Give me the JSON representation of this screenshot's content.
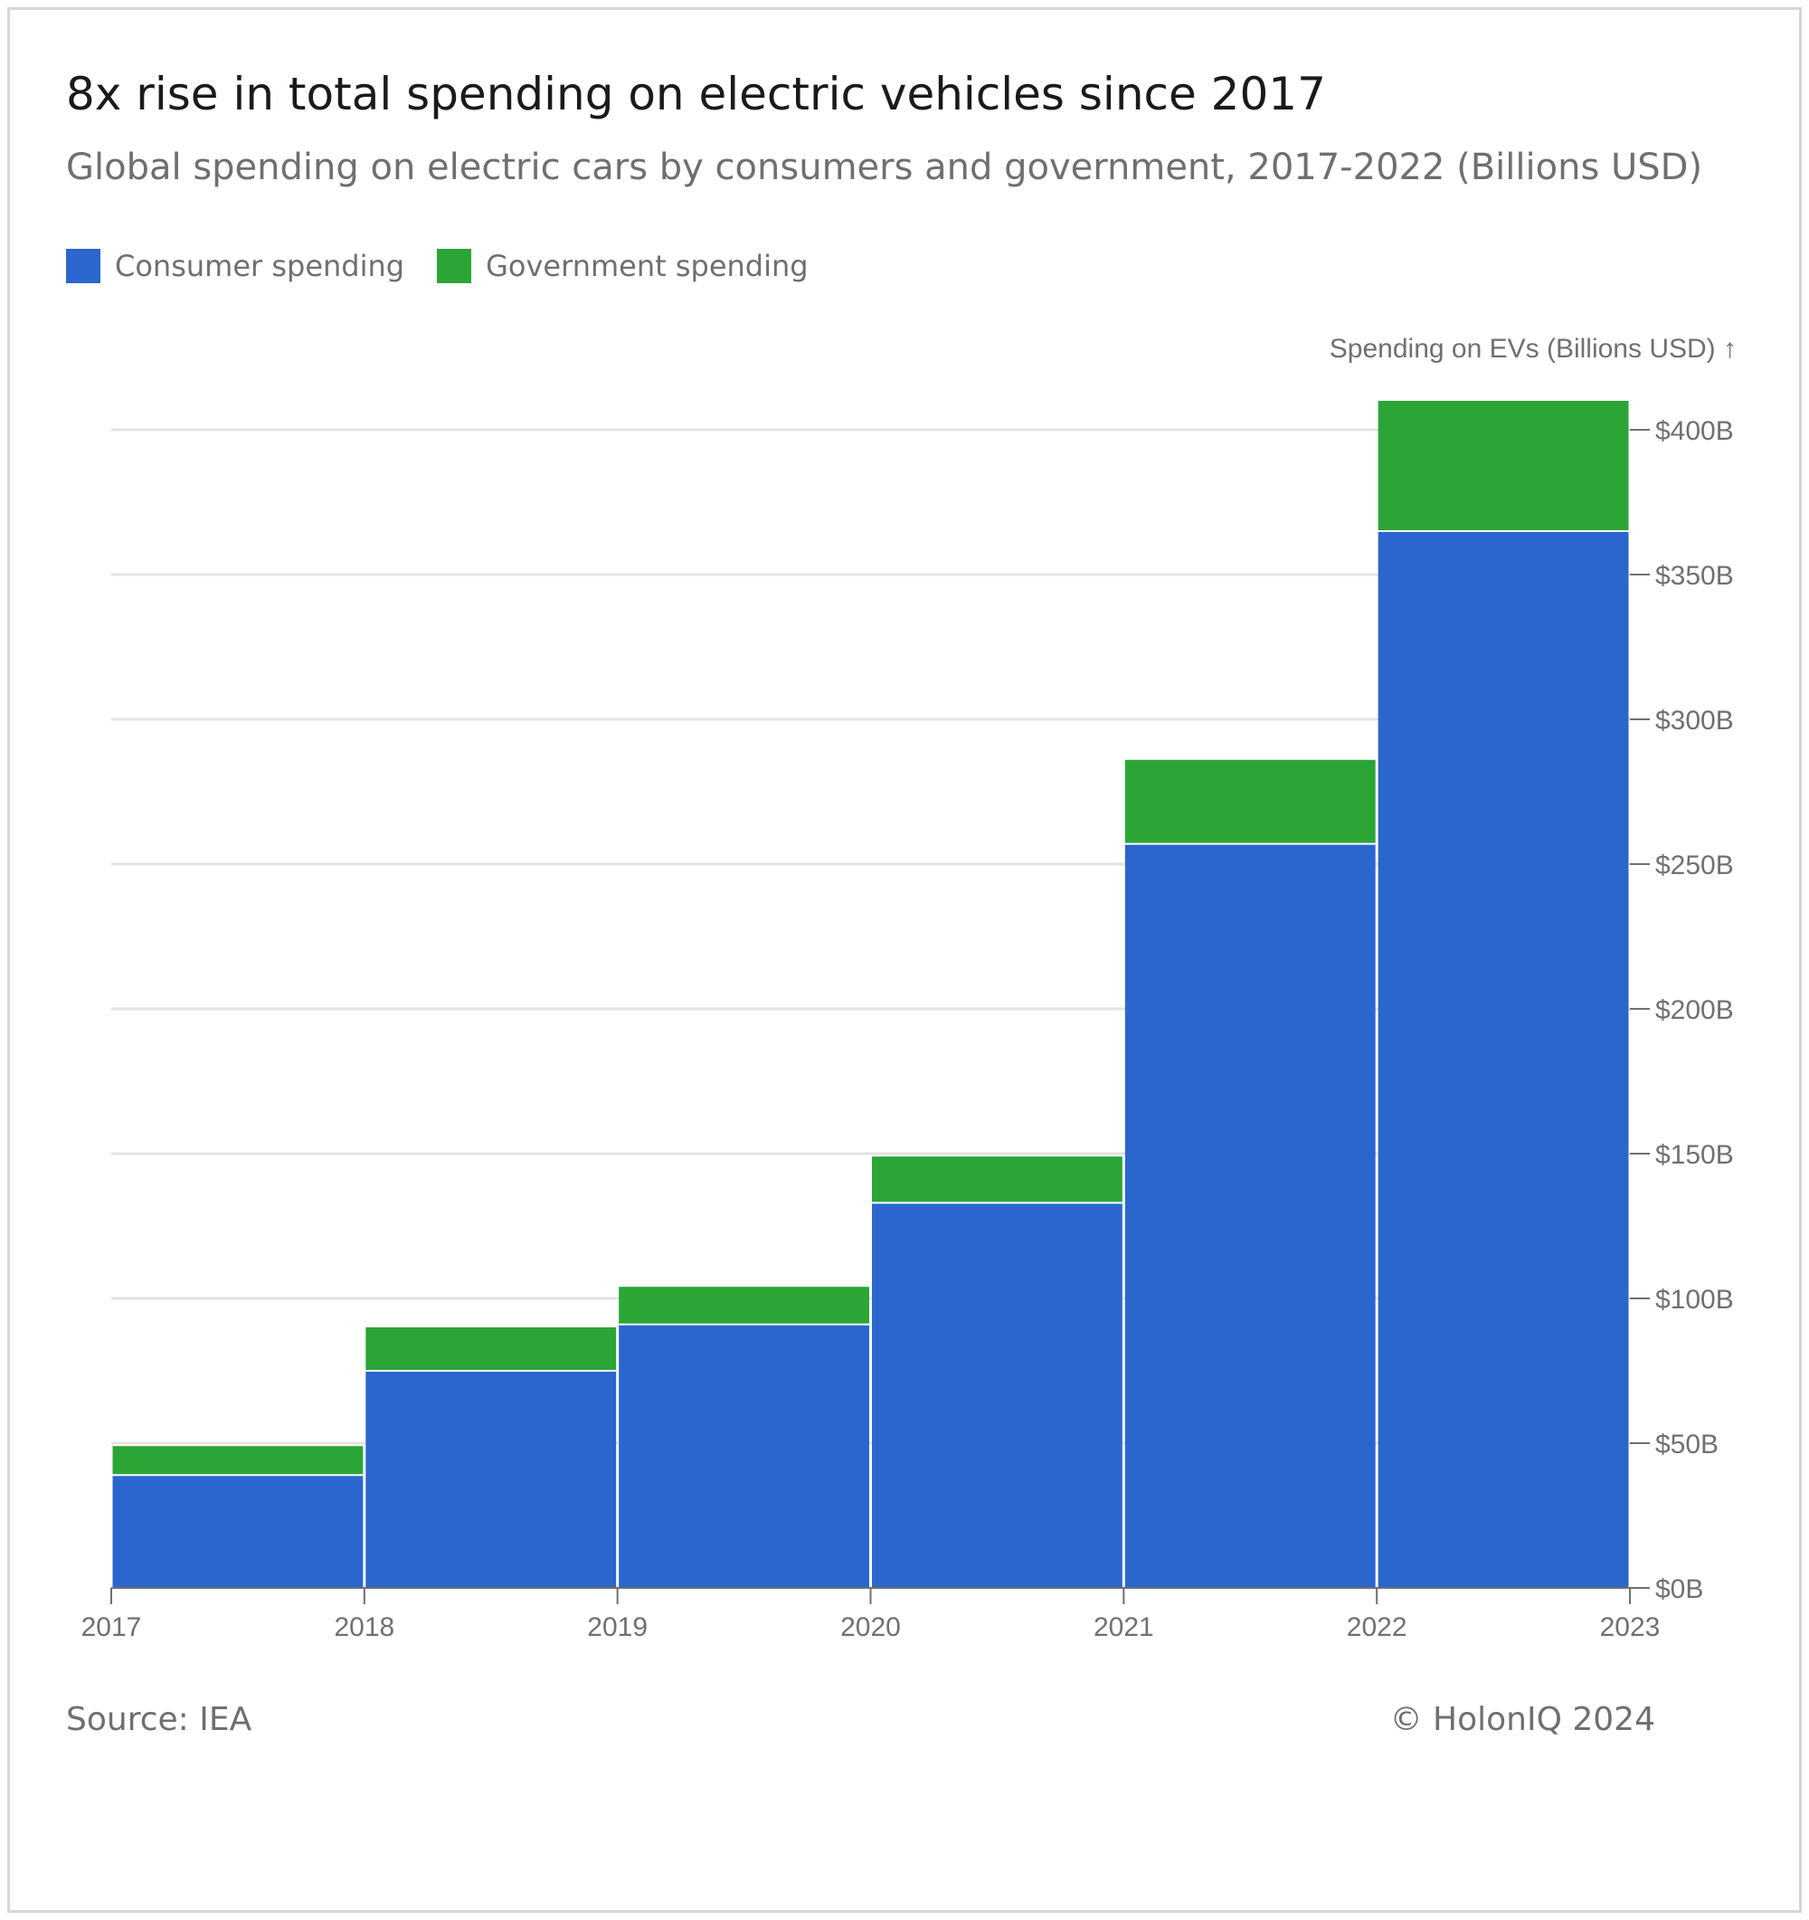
{
  "header": {
    "title": "8x rise in total spending on electric vehicles since 2017",
    "subtitle": "Global spending on electric cars by consumers and government, 2017-2022 (Billions USD)"
  },
  "footer": {
    "source": "Source: IEA",
    "copyright": "© HolonIQ 2024"
  },
  "colors": {
    "consumer": "#2a66cd",
    "government": "#2ca537",
    "grid": "#e3e3e3",
    "axis": "#707070"
  },
  "chart_data": {
    "type": "bar",
    "stacked": true,
    "categories": [
      "2017",
      "2018",
      "2019",
      "2020",
      "2021",
      "2022"
    ],
    "x_tick_labels": [
      "2017",
      "2018",
      "2019",
      "2020",
      "2021",
      "2022",
      "2023"
    ],
    "series": [
      {
        "name": "Consumer spending",
        "color": "#2a66cd",
        "values": [
          39,
          75,
          91,
          133,
          257,
          365
        ]
      },
      {
        "name": "Government spending",
        "color": "#2ca537",
        "values": [
          10,
          15,
          13,
          16,
          29,
          45
        ]
      }
    ],
    "ylabel": "Spending on EVs (Billions USD) ↑",
    "ylim": [
      0,
      400
    ],
    "y_ticks": [
      0,
      50,
      100,
      150,
      200,
      250,
      300,
      350,
      400
    ],
    "y_tick_labels": [
      "$0B",
      "$50B",
      "$100B",
      "$150B",
      "$200B",
      "$250B",
      "$300B",
      "$350B",
      "$400B"
    ],
    "y_axis_side": "right",
    "grid": true,
    "legend": "top-left"
  }
}
